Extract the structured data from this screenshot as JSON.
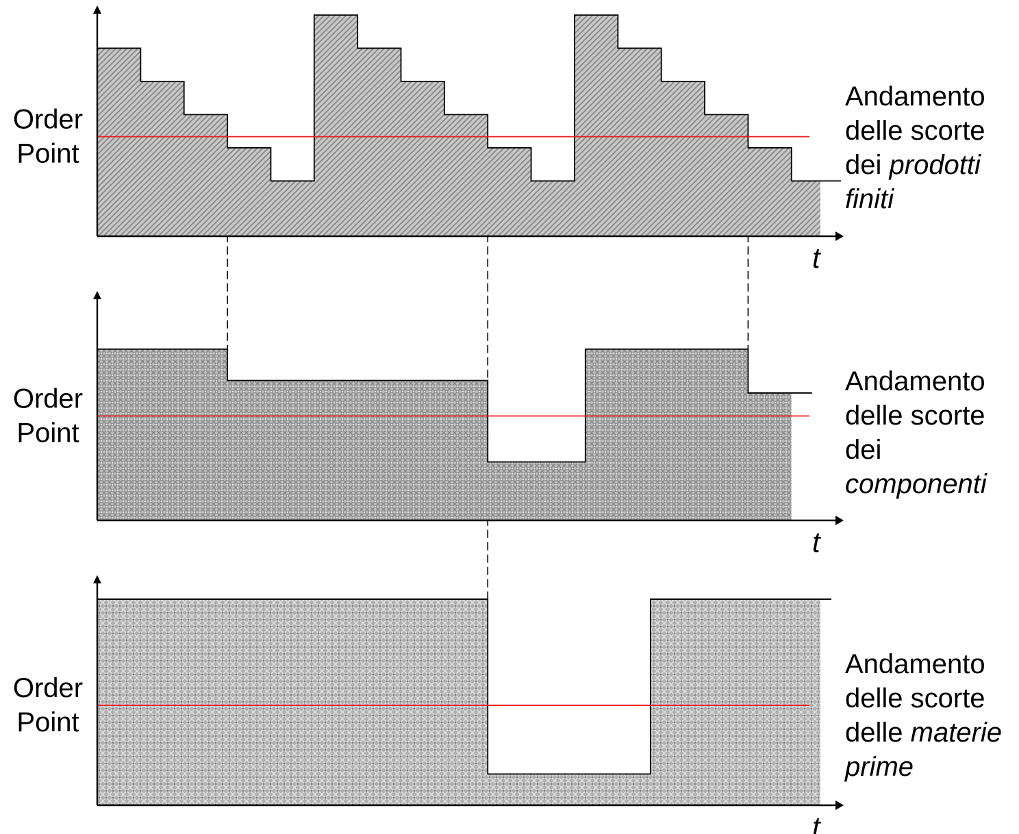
{
  "colors": {
    "order_point_line": "#e8201c",
    "axis": "#000000",
    "area_fill": "#b3b3b3",
    "pattern_ink": "#7a7a7a"
  },
  "chart_data": [
    {
      "type": "area",
      "step": "post",
      "order_point_label_lines": [
        "Order",
        "Point"
      ],
      "side_label": {
        "lines": [
          [
            {
              "text": "Andamento",
              "italic": false
            }
          ],
          [
            {
              "text": "delle scorte",
              "italic": false
            }
          ],
          [
            {
              "text": "dei ",
              "italic": false
            },
            {
              "text": "prodotti",
              "italic": true
            }
          ],
          [
            {
              "text": "finiti",
              "italic": true
            }
          ]
        ]
      },
      "xlabel": "t",
      "ylabel": "",
      "xlim": [
        0,
        100
      ],
      "ylim": [
        0,
        100
      ],
      "order_point": 45,
      "series": [
        {
          "x": [
            0,
            6,
            12,
            18,
            24,
            30,
            36,
            42,
            48,
            54,
            60,
            66,
            72,
            78,
            84,
            90,
            96,
            100
          ],
          "values": [
            85,
            70,
            55,
            40,
            25,
            100,
            85,
            70,
            55,
            40,
            25,
            100,
            85,
            70,
            55,
            40,
            25,
            25
          ]
        }
      ],
      "fill": "diagonal-hatch"
    },
    {
      "type": "area",
      "step": "post",
      "order_point_label_lines": [
        "Order",
        "Point"
      ],
      "side_label": {
        "lines": [
          [
            {
              "text": "Andamento",
              "italic": false
            }
          ],
          [
            {
              "text": "delle scorte",
              "italic": false
            }
          ],
          [
            {
              "text": "dei",
              "italic": false
            }
          ],
          [
            {
              "text": "componenti",
              "italic": true
            }
          ]
        ]
      },
      "xlabel": "t",
      "ylabel": "",
      "xlim": [
        0,
        100
      ],
      "ylim": [
        0,
        100
      ],
      "order_point": 50,
      "series": [
        {
          "x": [
            0,
            18,
            54,
            67.5,
            90,
            96
          ],
          "values": [
            82,
            67,
            28,
            82,
            61,
            61
          ]
        }
      ],
      "fill": "crosshatch"
    },
    {
      "type": "area",
      "step": "post",
      "order_point_label_lines": [
        "Order",
        "Point"
      ],
      "side_label": {
        "lines": [
          [
            {
              "text": "Andamento",
              "italic": false
            }
          ],
          [
            {
              "text": "delle scorte",
              "italic": false
            }
          ],
          [
            {
              "text": "delle ",
              "italic": false
            },
            {
              "text": "materie",
              "italic": true
            }
          ],
          [
            {
              "text": "prime",
              "italic": true
            }
          ]
        ]
      },
      "xlabel": "t",
      "ylabel": "",
      "xlim": [
        0,
        100
      ],
      "ylim": [
        0,
        100
      ],
      "order_point": 48,
      "series": [
        {
          "x": [
            0,
            54,
            76.5,
            100
          ],
          "values": [
            99,
            15,
            99,
            99
          ]
        }
      ],
      "fill": "dotted-crosshatch"
    }
  ],
  "links": [
    {
      "x": 18,
      "from_panel": 0,
      "to_panel": 1
    },
    {
      "x": 54,
      "from_panel": 0,
      "to_panel": 2
    },
    {
      "x": 90,
      "from_panel": 0,
      "to_panel": 1
    }
  ]
}
